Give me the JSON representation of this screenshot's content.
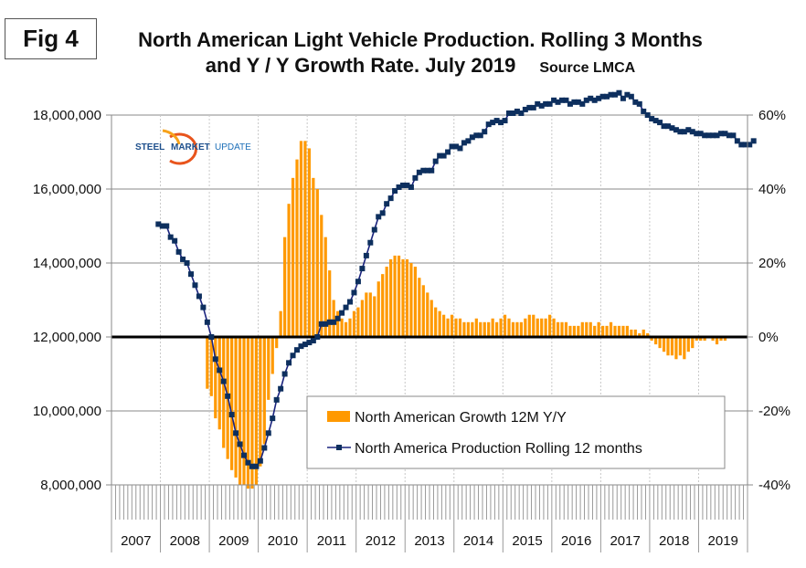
{
  "figure": {
    "label": "Fig 4",
    "title_line1": "North American Light Vehicle Production. Rolling 3 Months",
    "title_line2": "and Y / Y Growth Rate. July 2019",
    "source": "Source LMCA",
    "logo_word1": "STEEL",
    "logo_word2": "MARKET",
    "logo_word3": "UPDATE"
  },
  "chart_data": {
    "type": "bar+line",
    "title": "North American Light Vehicle Production. Rolling 3 Months and Y / Y Growth Rate. July 2019",
    "source": "Source LMCA",
    "x_categories": [
      "2007",
      "2008",
      "2009",
      "2010",
      "2011",
      "2012",
      "2013",
      "2014",
      "2015",
      "2016",
      "2017",
      "2018",
      "2019"
    ],
    "x_unit": "month",
    "x_start": "Jan 2007",
    "left_axis": {
      "ylim": [
        8000000,
        18000000
      ],
      "ticks": [
        "8,000,000",
        "10,000,000",
        "12,000,000",
        "14,000,000",
        "16,000,000",
        "18,000,000"
      ],
      "tick_values": [
        8000000,
        10000000,
        12000000,
        14000000,
        16000000,
        18000000
      ]
    },
    "right_axis": {
      "ylim": [
        -40,
        60
      ],
      "ticks": [
        "-40%",
        "-20%",
        "0%",
        "20%",
        "40%",
        "60%"
      ],
      "tick_values": [
        -40,
        -20,
        0,
        20,
        40,
        60
      ]
    },
    "grid": "horizontal solid, vertical dotted per year",
    "legend": {
      "placement": "bottom-center",
      "entries": [
        "North American Growth 12M Y/Y",
        "North America Production Rolling 12 months"
      ]
    },
    "series": [
      {
        "name": "North American Growth 12M Y/Y",
        "type": "bar",
        "axis": "right",
        "color": "#ff9900",
        "start_month_index": 23,
        "values": [
          -14,
          -16,
          -22,
          -25,
          -30,
          -33,
          -36,
          -38,
          -40,
          -40,
          -41,
          -41,
          -40,
          -35,
          -29,
          -17,
          -10,
          -3,
          7,
          27,
          36,
          43,
          48,
          53,
          53,
          51,
          43,
          40,
          33,
          27,
          18,
          10,
          7,
          5,
          4,
          5,
          7,
          8,
          10,
          12,
          12,
          11,
          15,
          17,
          19,
          21,
          22,
          22,
          21,
          21,
          20,
          19,
          16,
          14,
          12,
          10,
          8,
          7,
          6,
          5,
          6,
          5,
          5,
          4,
          4,
          4,
          5,
          4,
          4,
          4,
          5,
          4,
          5,
          6,
          5,
          4,
          4,
          4,
          5,
          6,
          6,
          5,
          5,
          5,
          6,
          5,
          4,
          4,
          4,
          3,
          3,
          3,
          4,
          4,
          4,
          3,
          4,
          3,
          3,
          4,
          3,
          3,
          3,
          3,
          2,
          2,
          1,
          2,
          1,
          -1,
          -2,
          -3,
          -4,
          -5,
          -5,
          -6,
          -5,
          -6,
          -4,
          -3,
          -1,
          -1,
          -1,
          0,
          -1,
          -2,
          -1,
          -1
        ]
      },
      {
        "name": "North America Production Rolling 12 months",
        "type": "line",
        "axis": "left",
        "color": "#1a237e",
        "marker_color": "#0d2f5e",
        "start_month_index": 11,
        "values": [
          15050000,
          15000000,
          15000000,
          14700000,
          14600000,
          14300000,
          14100000,
          14000000,
          13700000,
          13400000,
          13100000,
          12800000,
          12400000,
          12000000,
          11400000,
          11100000,
          10800000,
          10400000,
          9900000,
          9400000,
          9100000,
          8800000,
          8600000,
          8500000,
          8500000,
          8650000,
          9000000,
          9400000,
          9800000,
          10300000,
          10600000,
          11000000,
          11300000,
          11500000,
          11650000,
          11750000,
          11800000,
          11850000,
          11900000,
          12000000,
          12350000,
          12350000,
          12400000,
          12400000,
          12500000,
          12650000,
          12800000,
          12950000,
          13200000,
          13500000,
          13850000,
          14200000,
          14550000,
          14900000,
          15250000,
          15350000,
          15600000,
          15750000,
          15950000,
          16050000,
          16100000,
          16100000,
          16050000,
          16300000,
          16450000,
          16500000,
          16500000,
          16500000,
          16750000,
          16900000,
          16900000,
          17000000,
          17150000,
          17150000,
          17100000,
          17250000,
          17300000,
          17400000,
          17450000,
          17450000,
          17550000,
          17750000,
          17800000,
          17850000,
          17800000,
          17850000,
          18050000,
          18050000,
          18100000,
          18050000,
          18150000,
          18200000,
          18200000,
          18300000,
          18250000,
          18300000,
          18300000,
          18400000,
          18350000,
          18400000,
          18400000,
          18300000,
          18350000,
          18350000,
          18300000,
          18400000,
          18450000,
          18400000,
          18450000,
          18500000,
          18500000,
          18550000,
          18550000,
          18600000,
          18450000,
          18550000,
          18500000,
          18350000,
          18300000,
          18100000,
          18000000,
          17900000,
          17850000,
          17800000,
          17700000,
          17700000,
          17650000,
          17600000,
          17550000,
          17550000,
          17600000,
          17550000,
          17500000,
          17500000,
          17450000,
          17450000,
          17450000,
          17450000,
          17500000,
          17500000,
          17450000,
          17450000,
          17300000,
          17200000,
          17200000,
          17200000,
          17300000
        ]
      }
    ]
  }
}
